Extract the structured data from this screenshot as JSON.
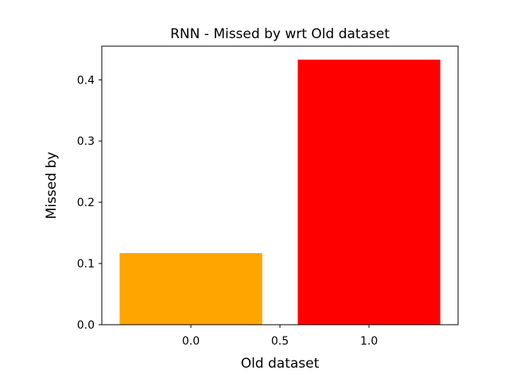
{
  "chart_data": {
    "type": "bar",
    "title": "RNN - Missed by wrt Old dataset",
    "xlabel": "Old dataset",
    "ylabel": "Missed by",
    "bars": [
      {
        "x": 0.0,
        "width": 0.8,
        "value": 0.117,
        "color": "#ffa500"
      },
      {
        "x": 1.0,
        "width": 0.8,
        "value": 0.433,
        "color": "#ff0000"
      }
    ],
    "xlim": [
      -0.5,
      1.5
    ],
    "ylim": [
      0.0,
      0.455
    ],
    "xticks": [
      0.0,
      0.5,
      1.0
    ],
    "xtick_labels": [
      "0.0",
      "0.5",
      "1.0"
    ],
    "yticks": [
      0.0,
      0.1,
      0.2,
      0.3,
      0.4
    ],
    "ytick_labels": [
      "0.0",
      "0.1",
      "0.2",
      "0.3",
      "0.4"
    ],
    "grid": false,
    "legend": "none"
  }
}
